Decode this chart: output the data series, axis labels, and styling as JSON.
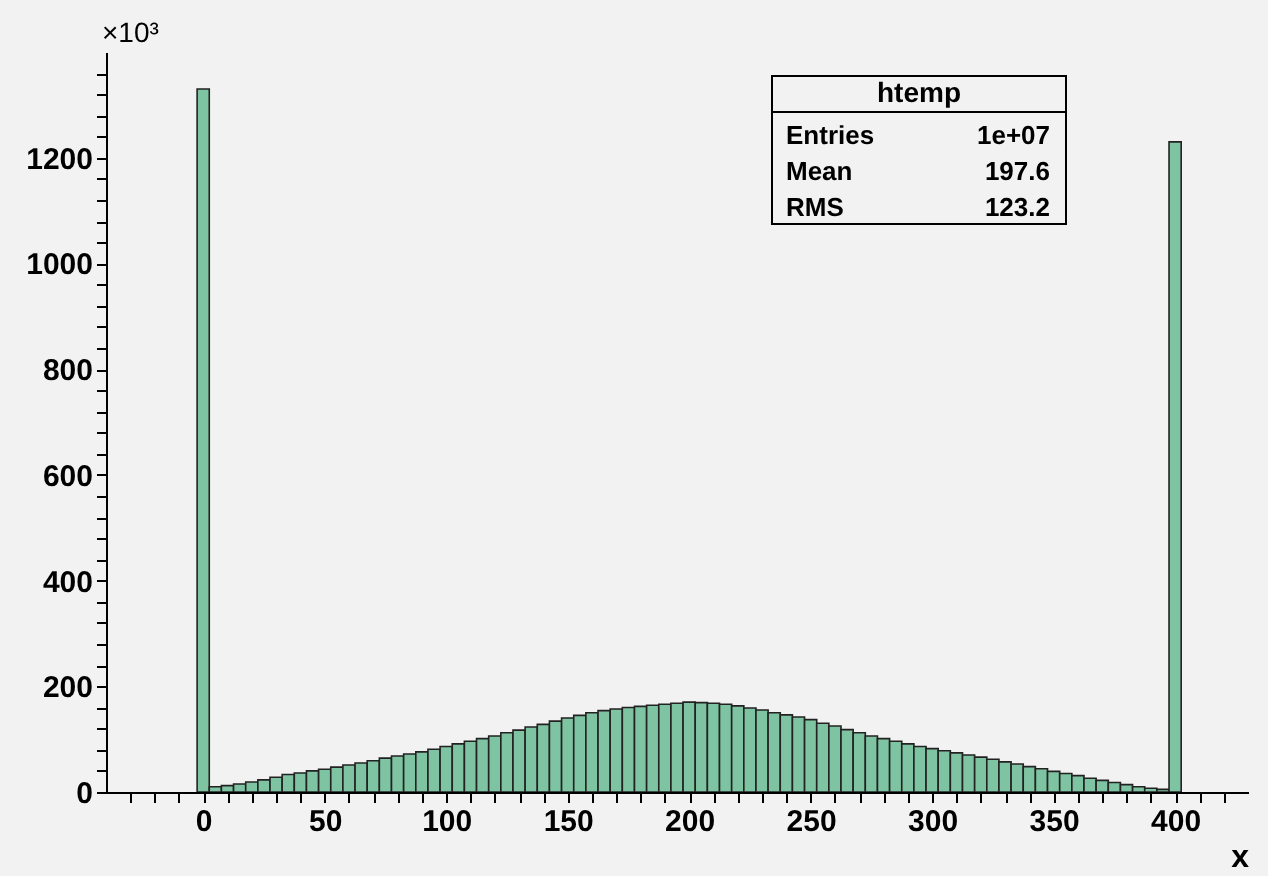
{
  "chart_data": {
    "type": "histogram",
    "xlabel": "x",
    "annotations": [
      "×10³",
      "htemp",
      "Entries",
      "1e+07",
      "Mean",
      "197.6",
      "RMS",
      "123.2"
    ],
    "bins": [
      -2.5,
      2.5,
      7.5,
      12.5,
      17.5,
      22.5,
      27.5,
      32.5,
      37.5,
      42.5,
      47.5,
      52.5,
      57.5,
      62.5,
      67.5,
      72.5,
      77.5,
      82.5,
      87.5,
      92.5,
      97.5,
      102.5,
      107.5,
      112.5,
      117.5,
      122.5,
      127.5,
      132.5,
      137.5,
      142.5,
      147.5,
      152.5,
      157.5,
      162.5,
      167.5,
      172.5,
      177.5,
      182.5,
      187.5,
      192.5,
      197.5,
      202.5,
      207.5,
      212.5,
      217.5,
      222.5,
      227.5,
      232.5,
      237.5,
      242.5,
      247.5,
      252.5,
      257.5,
      262.5,
      267.5,
      272.5,
      277.5,
      282.5,
      287.5,
      292.5,
      297.5,
      302.5,
      307.5,
      312.5,
      317.5,
      322.5,
      327.5,
      332.5,
      337.5,
      342.5,
      347.5,
      352.5,
      357.5,
      362.5,
      367.5,
      372.5,
      377.5,
      382.5,
      387.5,
      392.5,
      397.5,
      402.5
    ],
    "values": [
      1330,
      10,
      12,
      15,
      19,
      23,
      28,
      33,
      36,
      40,
      43,
      47,
      51,
      55,
      59,
      64,
      68,
      72,
      76,
      81,
      86,
      91,
      96,
      101,
      106,
      112,
      117,
      123,
      128,
      134,
      140,
      145,
      150,
      154,
      157,
      160,
      162,
      164,
      166,
      168,
      170,
      169,
      168,
      166,
      163,
      159,
      155,
      150,
      146,
      142,
      137,
      130,
      125,
      118,
      112,
      106,
      101,
      96,
      91,
      86,
      82,
      78,
      74,
      70,
      66,
      62,
      57,
      53,
      48,
      44,
      39,
      35,
      31,
      26,
      22,
      18,
      14,
      10,
      7,
      5,
      1230
    ],
    "color": "#7fc4a2",
    "xlim": [
      -40,
      430
    ],
    "xticks": [
      {
        "value": -30,
        "label": null
      },
      {
        "value": -20,
        "label": null
      },
      {
        "value": -10,
        "label": null
      },
      0,
      {
        "value": 10,
        "label": null
      },
      {
        "value": 20,
        "label": null
      },
      {
        "value": 30,
        "label": null
      },
      {
        "value": 40,
        "label": null
      },
      50,
      {
        "value": 60,
        "label": null
      },
      {
        "value": 70,
        "label": null
      },
      {
        "value": 80,
        "label": null
      },
      {
        "value": 90,
        "label": null
      },
      100,
      {
        "value": 110,
        "label": null
      },
      {
        "value": 120,
        "label": null
      },
      {
        "value": 130,
        "label": null
      },
      {
        "value": 140,
        "label": null
      },
      150,
      {
        "value": 160,
        "label": null
      },
      {
        "value": 170,
        "label": null
      },
      {
        "value": 180,
        "label": null
      },
      {
        "value": 190,
        "label": null
      },
      200,
      {
        "value": 210,
        "label": null
      },
      {
        "value": 220,
        "label": null
      },
      {
        "value": 230,
        "label": null
      },
      {
        "value": 240,
        "label": null
      },
      250,
      {
        "value": 260,
        "label": null
      },
      {
        "value": 270,
        "label": null
      },
      {
        "value": 280,
        "label": null
      },
      {
        "value": 290,
        "label": null
      },
      300,
      {
        "value": 310,
        "label": null
      },
      {
        "value": 320,
        "label": null
      },
      {
        "value": 330,
        "label": null
      },
      {
        "value": 340,
        "label": null
      },
      350,
      {
        "value": 360,
        "label": null
      },
      {
        "value": 370,
        "label": null
      },
      {
        "value": 380,
        "label": null
      },
      {
        "value": 390,
        "label": null
      },
      400,
      {
        "value": 410,
        "label": null
      },
      {
        "value": 420,
        "label": null
      }
    ],
    "ylim": [
      0,
      1400
    ],
    "yticks": [
      0,
      {
        "value": 40,
        "label": null
      },
      {
        "value": 80,
        "label": null
      },
      {
        "value": 120,
        "label": null
      },
      {
        "value": 160,
        "label": null
      },
      200,
      {
        "value": 240,
        "label": null
      },
      {
        "value": 280,
        "label": null
      },
      {
        "value": 320,
        "label": null
      },
      {
        "value": 360,
        "label": null
      },
      400,
      {
        "value": 440,
        "label": null
      },
      {
        "value": 480,
        "label": null
      },
      {
        "value": 520,
        "label": null
      },
      {
        "value": 560,
        "label": null
      },
      600,
      {
        "value": 640,
        "label": null
      },
      {
        "value": 680,
        "label": null
      },
      {
        "value": 720,
        "label": null
      },
      {
        "value": 760,
        "label": null
      },
      800,
      {
        "value": 840,
        "label": null
      },
      {
        "value": 880,
        "label": null
      },
      {
        "value": 920,
        "label": null
      },
      {
        "value": 960,
        "label": null
      },
      1000,
      {
        "value": 1040,
        "label": null
      },
      {
        "value": 1080,
        "label": null
      },
      {
        "value": 1120,
        "label": null
      },
      {
        "value": 1160,
        "label": null
      },
      1200,
      {
        "value": 1240,
        "label": null
      },
      {
        "value": 1280,
        "label": null
      },
      {
        "value": 1320,
        "label": null
      },
      {
        "value": 1360,
        "label": null
      }
    ],
    "grid": false
  }
}
